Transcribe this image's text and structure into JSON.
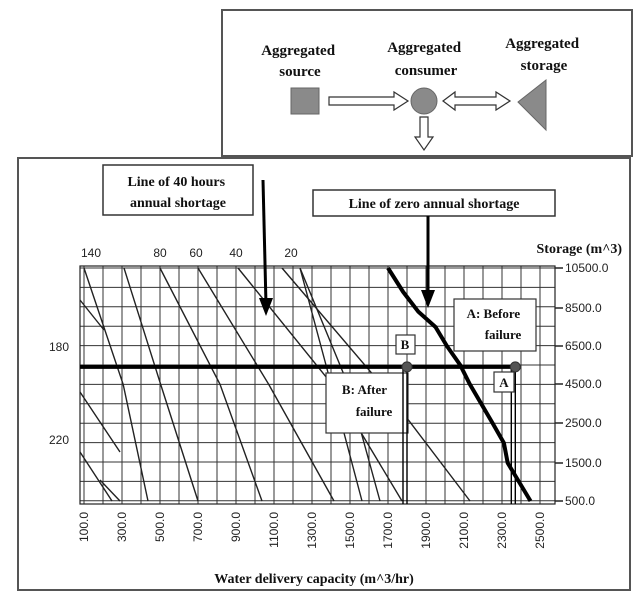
{
  "legend": {
    "source_label": [
      "Aggregated",
      "source"
    ],
    "consumer_label": [
      "Aggregated",
      "consumer"
    ],
    "storage_label": [
      "Aggregated",
      "storage"
    ],
    "colors": {
      "node": "#8a8a8a",
      "arrow_fill": "#ffffff",
      "arrow_stroke": "#333333"
    }
  },
  "chart_data": {
    "type": "line",
    "xlabel": "Water delivery capacity (m^3/hr)",
    "ylabel_right": "Storage (m^3)",
    "x_ticks": [
      "100.0",
      "300.0",
      "500.0",
      "700.0",
      "900.0",
      "1100.0",
      "1300.0",
      "1500.0",
      "1700.0",
      "1900.0",
      "2100.0",
      "2300.0",
      "2500.0"
    ],
    "y_ticks_right": [
      "10500.0",
      "8500.0",
      "6500.0",
      "4500.0",
      "2500.0",
      "1500.0",
      "500.0"
    ],
    "top_curve_labels": [
      "140",
      "80",
      "60",
      "40",
      "20"
    ],
    "left_curve_labels": [
      "180",
      "220"
    ],
    "xlim": [
      100,
      2500
    ],
    "grid": true,
    "annotations": {
      "forty_hours_callout": [
        "Line of 40 hours",
        "annual shortage"
      ],
      "zero_shortage_callout": "Line of zero annual shortage",
      "before_failure": [
        "A: Before",
        "failure"
      ],
      "after_failure": [
        "B: After",
        "failure"
      ],
      "point_a": "A",
      "point_b": "B"
    },
    "series": [
      {
        "name": "Line of zero annual shortage",
        "style": "thick",
        "points": [
          [
            1700,
            10500
          ],
          [
            1780,
            9300
          ],
          [
            1860,
            8300
          ],
          [
            1950,
            7500
          ],
          [
            2010,
            6500
          ],
          [
            2080,
            5500
          ],
          [
            2130,
            4500
          ],
          [
            2190,
            3500
          ],
          [
            2250,
            2500
          ],
          [
            2310,
            2000
          ],
          [
            2330,
            1500
          ],
          [
            2390,
            1000
          ],
          [
            2450,
            500
          ]
        ]
      }
    ],
    "points": [
      {
        "label": "A",
        "x": 2370,
        "y": 5400
      },
      {
        "label": "B",
        "x": 1800,
        "y": 5400
      }
    ],
    "storage_line": 5400
  }
}
